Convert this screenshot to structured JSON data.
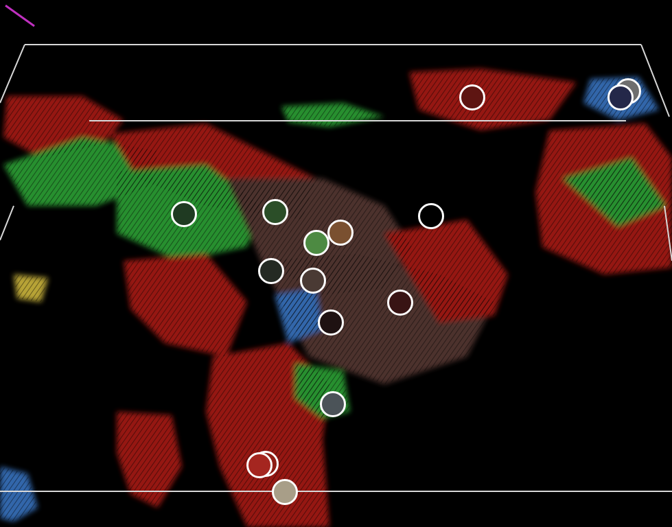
{
  "viewer": {
    "background": "#000000",
    "bounding_box_color": "#d8d8d8",
    "axis_indicator_color": "#c030c0",
    "surface_palette": [
      "#b01a12",
      "#2fa838",
      "#3a78c8",
      "#d8c040",
      "#5a3a34"
    ]
  },
  "markers": [
    {
      "id": "m1",
      "color": "#5e1512"
    },
    {
      "id": "m2",
      "color": "#6e6e6e"
    },
    {
      "id": "m3",
      "color": "#242849"
    },
    {
      "id": "m4",
      "color": "#1f3a22"
    },
    {
      "id": "m5",
      "color": "#2b4e28"
    },
    {
      "id": "m6",
      "color": "#000000"
    },
    {
      "id": "m7",
      "color": "#7a5030"
    },
    {
      "id": "m8",
      "color": "#4d8a42"
    },
    {
      "id": "m9",
      "color": "#242a23"
    },
    {
      "id": "m10",
      "color": "#4a3a34"
    },
    {
      "id": "m11",
      "color": "#381414"
    },
    {
      "id": "m12",
      "color": "#1e1212"
    },
    {
      "id": "m13",
      "color": "#4b5358"
    },
    {
      "id": "m14",
      "color": "#8e1e16"
    },
    {
      "id": "m15",
      "color": "#a52620"
    },
    {
      "id": "m16",
      "color": "#a89e88"
    }
  ]
}
